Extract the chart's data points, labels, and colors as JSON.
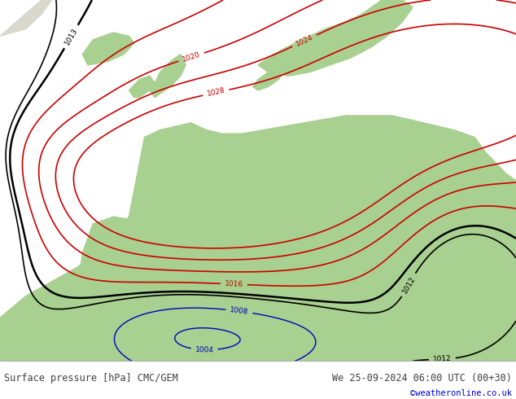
{
  "title_left": "Surface pressure [hPa] CMC/GEM",
  "title_right": "We 25-09-2024 06:00 UTC (00+30)",
  "credit": "©weatheronline.co.uk",
  "ocean_color": "#b0bec8",
  "land_color": "#a8d090",
  "footer_text_color": "#404040",
  "credit_color": "#0000cc",
  "contour_red_color": "#cc0000",
  "contour_black_color": "#000000",
  "contour_blue_color": "#0000bb",
  "label_fontsize": 6.5,
  "footer_fontsize": 8.5
}
